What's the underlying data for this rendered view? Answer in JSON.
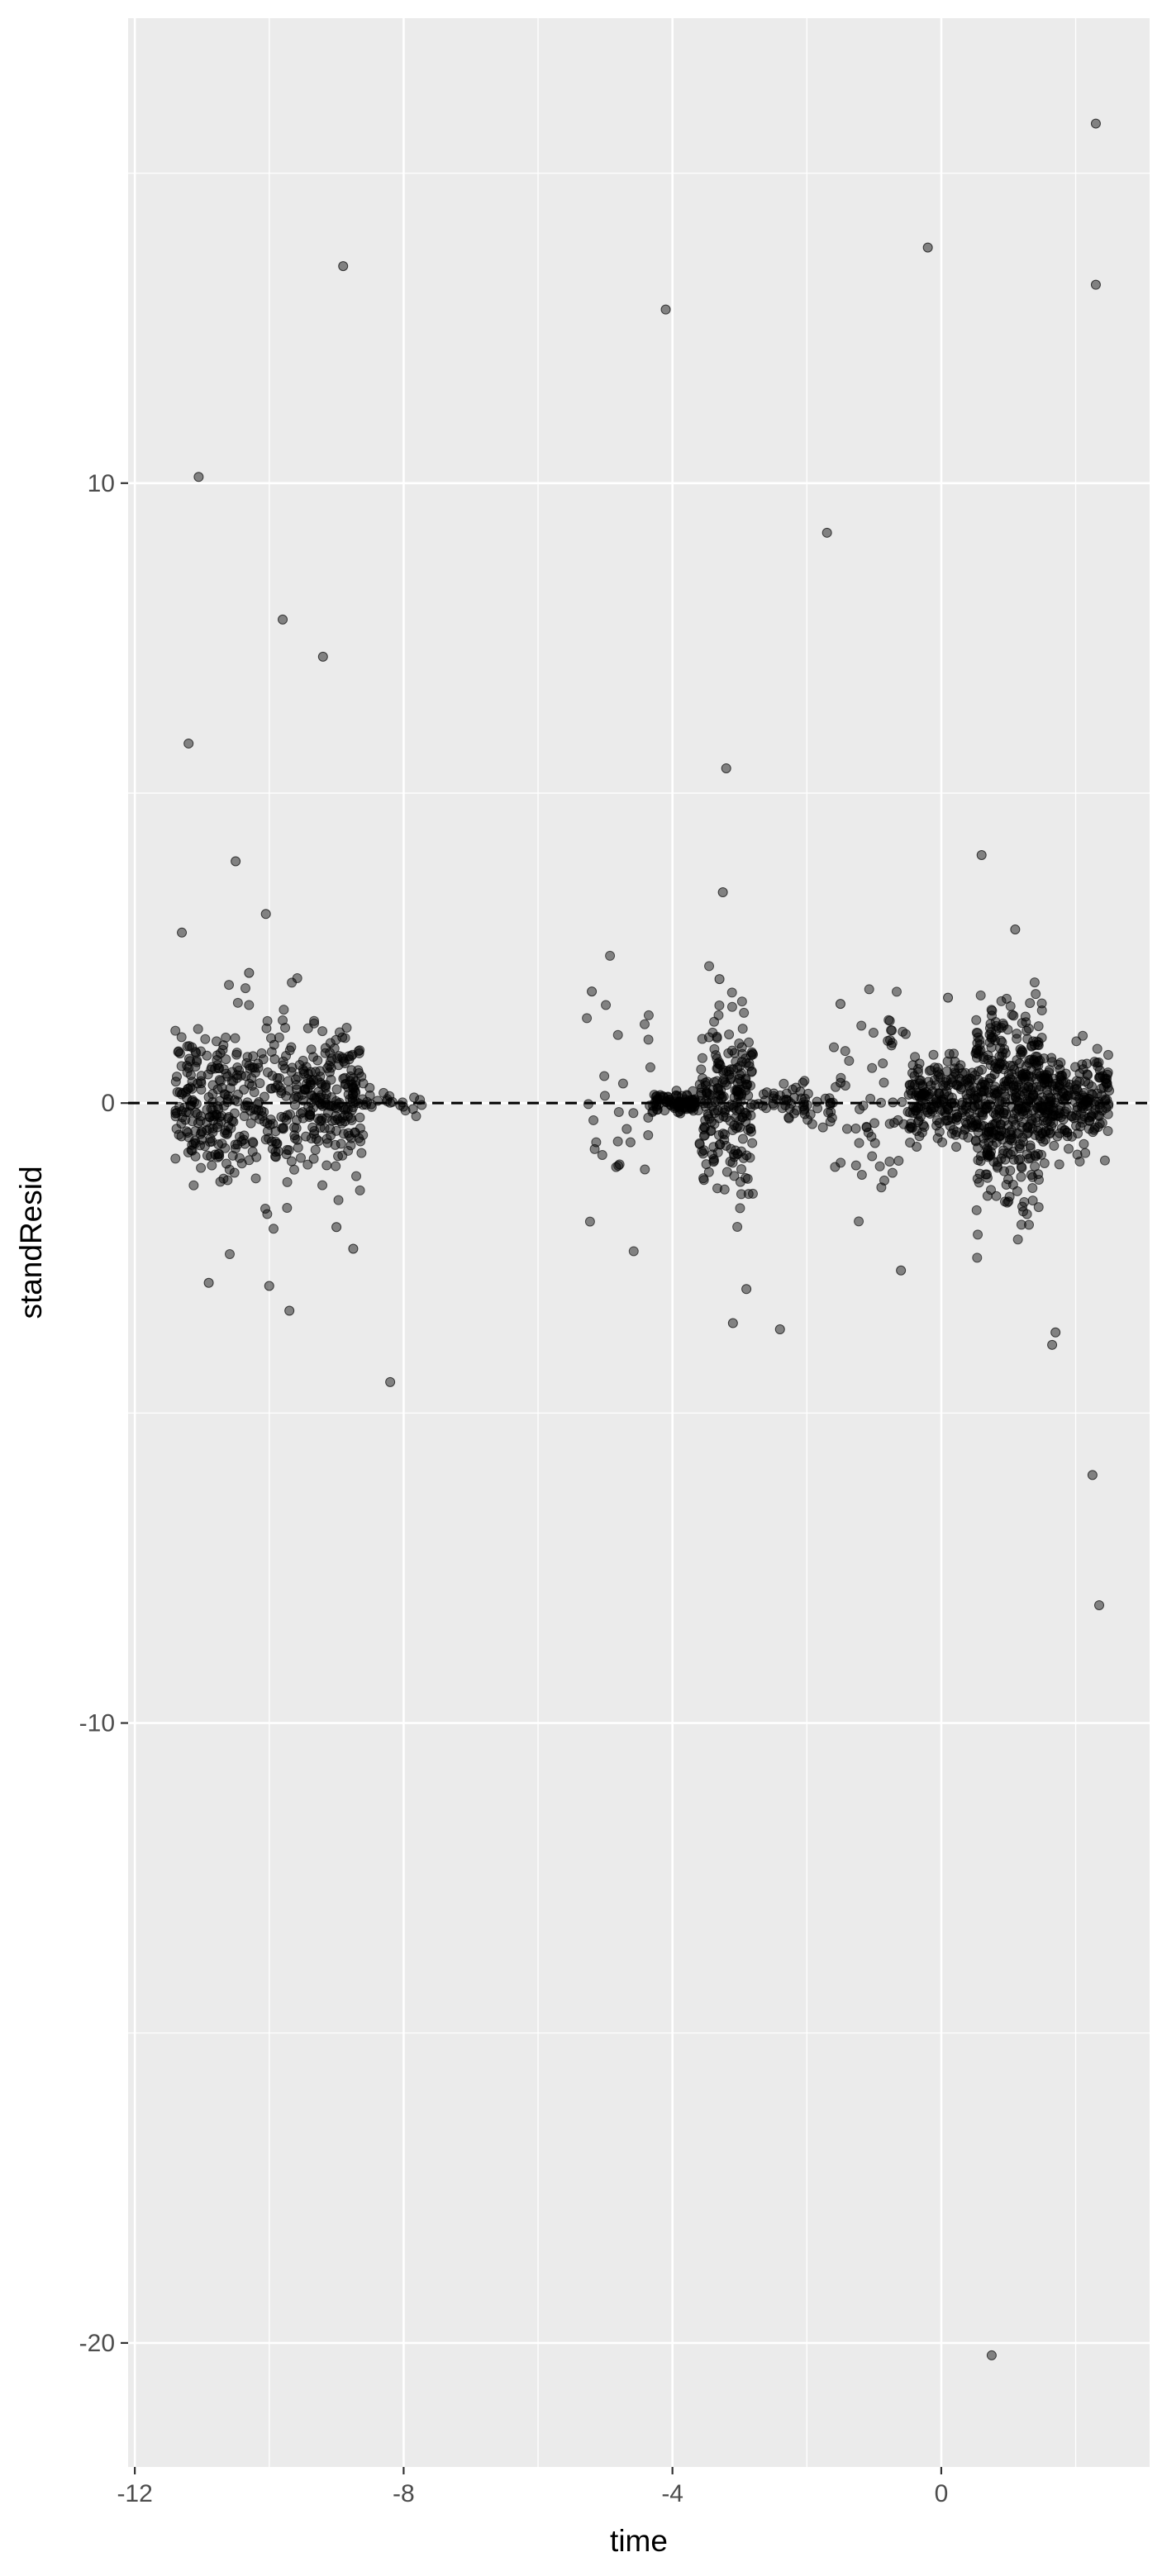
{
  "chart_data": {
    "type": "scatter",
    "xlabel": "time",
    "ylabel": "standResid",
    "xlim": [
      -12.1,
      3.1
    ],
    "ylim": [
      -22.0,
      17.5
    ],
    "x_ticks": [
      -12,
      -8,
      -4,
      0
    ],
    "x_tick_labels": [
      "-12",
      "-8",
      "-4",
      "0"
    ],
    "y_ticks": [
      -20,
      -10,
      0,
      10
    ],
    "y_tick_labels": [
      "-20",
      "-10",
      "0",
      "10"
    ],
    "grid": true,
    "reference_line": {
      "y": 0,
      "style": "dashed",
      "color": "#000000"
    },
    "colors": {
      "panel": "#ebebeb",
      "grid": "#ffffff",
      "point": "#000000"
    },
    "outliers": {
      "x": [
        -11.05,
        -11.2,
        -9.8,
        -9.2,
        -8.9,
        -10.5,
        -10.05,
        -10.3,
        -11.3,
        -10.9,
        -9.7,
        -10.0,
        -9.0,
        -8.75,
        -8.2,
        -5.2,
        -4.1,
        -3.2,
        -3.25,
        -3.3,
        -3.1,
        -2.4,
        -2.9,
        -1.7,
        -1.5,
        0.6,
        -0.2,
        1.1,
        2.3,
        2.3,
        2.25,
        2.35,
        1.7,
        1.65,
        0.75,
        0.1,
        -0.6
      ],
      "y": [
        10.1,
        5.8,
        7.8,
        7.2,
        13.5,
        3.9,
        3.05,
        2.1,
        2.75,
        -2.9,
        -3.35,
        -2.95,
        -2.0,
        -2.35,
        -4.5,
        1.8,
        12.8,
        5.4,
        3.4,
        2.0,
        -3.55,
        -3.65,
        -3.0,
        9.2,
        1.6,
        4.0,
        13.8,
        2.8,
        15.8,
        13.2,
        -6.0,
        -8.1,
        -3.7,
        -3.9,
        -20.2,
        1.7,
        -2.7
      ]
    }
  }
}
